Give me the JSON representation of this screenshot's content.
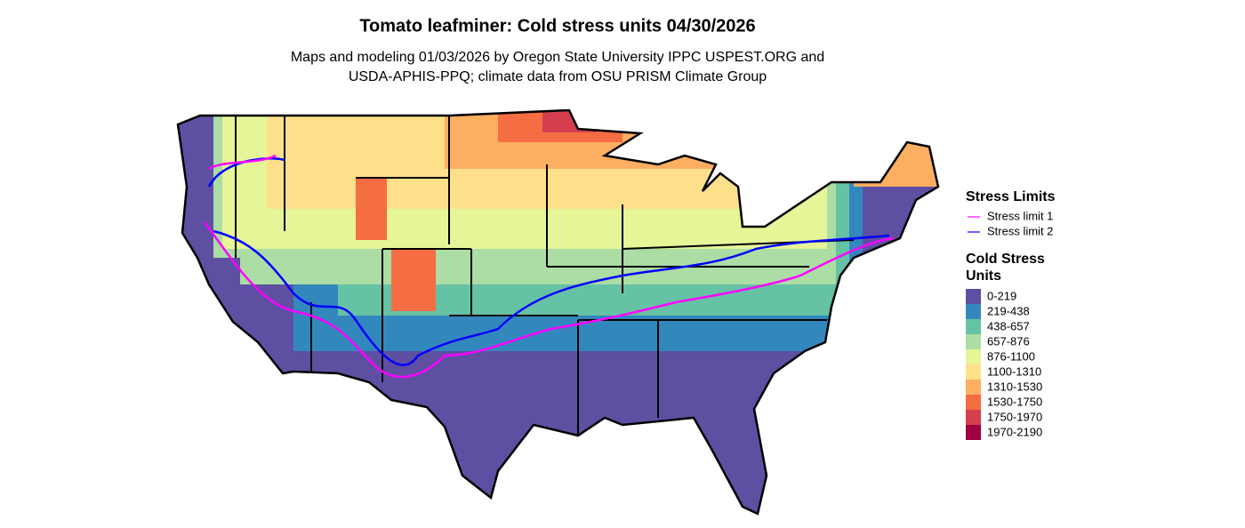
{
  "title": "Tomato leafminer: Cold stress units 04/30/2026",
  "subtitle_lines": [
    "Maps and modeling 01/03/2026 by Oregon State University IPPC USPEST.ORG and",
    "USDA-APHIS-PPQ; climate data from OSU PRISM Climate Group"
  ],
  "line_legend": {
    "title": "Stress Limits",
    "items": [
      {
        "label": "Stress limit 1",
        "color": "#ff00ff"
      },
      {
        "label": "Stress limit 2",
        "color": "#0000ff"
      }
    ]
  },
  "fill_legend": {
    "title_lines": [
      "Cold Stress",
      "Units"
    ],
    "items": [
      {
        "label": "0-219",
        "color": "#5e4fa2"
      },
      {
        "label": "219-438",
        "color": "#3288bd"
      },
      {
        "label": "438-657",
        "color": "#66c2a5"
      },
      {
        "label": "657-876",
        "color": "#abdda4"
      },
      {
        "label": "876-1100",
        "color": "#e6f598"
      },
      {
        "label": "1100-1310",
        "color": "#fee08b"
      },
      {
        "label": "1310-1530",
        "color": "#fdae61"
      },
      {
        "label": "1530-1750",
        "color": "#f46d43"
      },
      {
        "label": "1750-1970",
        "color": "#d53e4f"
      },
      {
        "label": "1970-2190",
        "color": "#9e0142"
      }
    ]
  }
}
